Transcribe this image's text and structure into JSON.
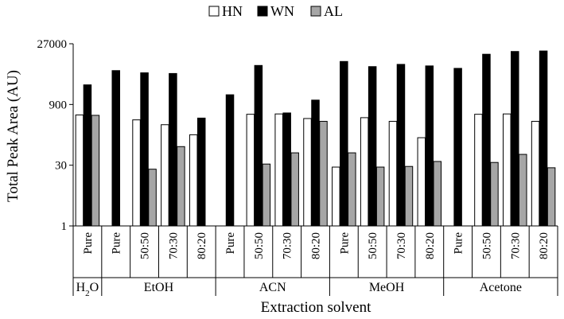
{
  "chart_data": {
    "type": "bar",
    "ylabel": "Total Peak Area (AU)",
    "xlabel": "Extraction solvent",
    "y_scale": "log",
    "ylim": [
      1,
      27000
    ],
    "y_ticks": [
      {
        "value": 1,
        "label": "1"
      },
      {
        "value": 30,
        "label": "30"
      },
      {
        "value": 900,
        "label": "900"
      },
      {
        "value": 27000,
        "label": "27000"
      }
    ],
    "groups": [
      {
        "label": "H2O",
        "categories": [
          "Pure"
        ]
      },
      {
        "label": "EtOH",
        "categories": [
          "Pure",
          "50:50",
          "70:30",
          "80:20"
        ]
      },
      {
        "label": "ACN",
        "categories": [
          "Pure",
          "50:50",
          "70:30",
          "80:20"
        ]
      },
      {
        "label": "MeOH",
        "categories": [
          "Pure",
          "50:50",
          "70:30",
          "80:20"
        ]
      },
      {
        "label": "Acetone",
        "categories": [
          "Pure",
          "50:50",
          "70:30",
          "80:20"
        ]
      }
    ],
    "series": [
      {
        "name": "HN",
        "color": "#ffffff",
        "values": [
          500,
          null,
          380,
          290,
          165,
          null,
          520,
          530,
          410,
          27,
          430,
          350,
          140,
          null,
          520,
          530,
          350
        ]
      },
      {
        "name": "WN",
        "color": "#000000",
        "values": [
          2700,
          6000,
          5300,
          5100,
          420,
          1550,
          8000,
          560,
          1150,
          10000,
          7500,
          8500,
          7800,
          6800,
          15000,
          17500,
          18000
        ]
      },
      {
        "name": "AL",
        "color": "#a6a6a6",
        "values": [
          490,
          null,
          24,
          85,
          null,
          null,
          32,
          60,
          350,
          60,
          27,
          28,
          37,
          null,
          35,
          55,
          26
        ]
      }
    ],
    "legend_position": "top-center",
    "grid": false
  }
}
